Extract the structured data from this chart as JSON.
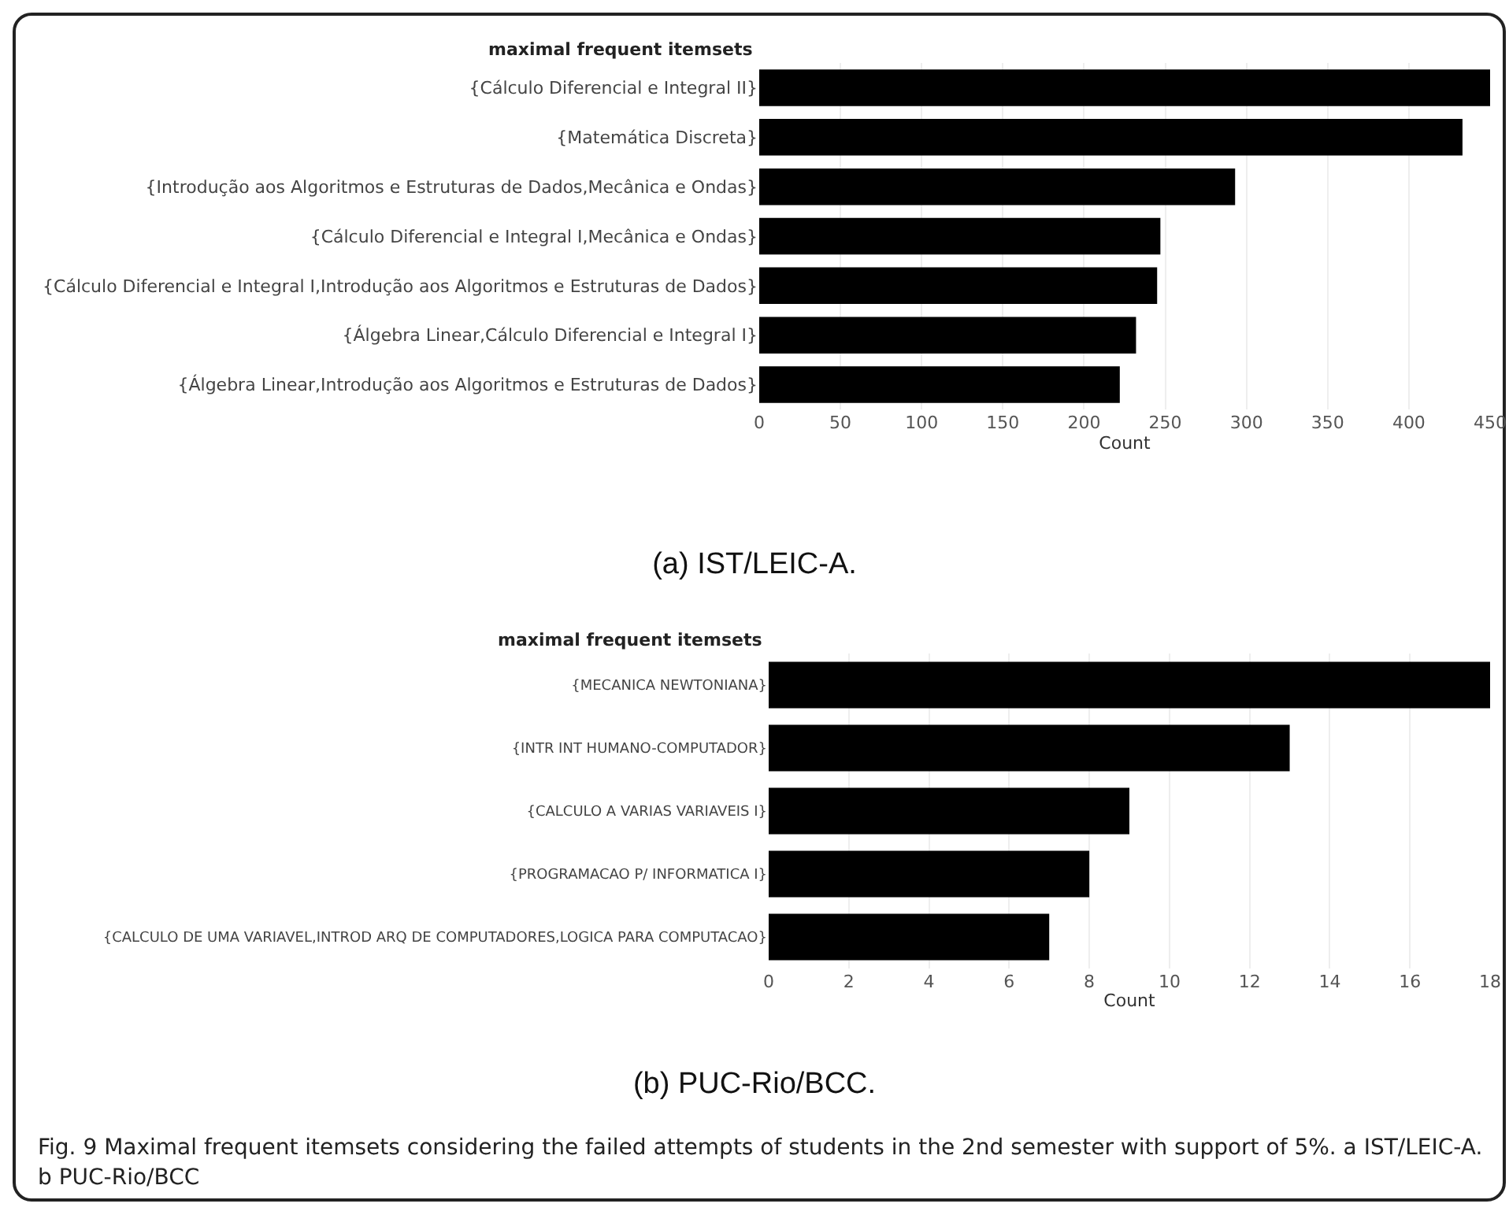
{
  "chart_data": [
    {
      "type": "bar",
      "orientation": "horizontal",
      "ylabel": "maximal frequent itemsets",
      "xlabel": "Count",
      "color": "#000000",
      "grid": "x",
      "categories": [
        "{Cálculo Diferencial e Integral II}",
        "{Matemática Discreta}",
        "{Introdução aos Algoritmos e Estruturas de Dados,Mecânica e Ondas}",
        "{Cálculo Diferencial e Integral I,Mecânica e Ondas}",
        "{Cálculo Diferencial e Integral I,Introdução aos Algoritmos e Estruturas de Dados}",
        "{Álgebra Linear,Cálculo Diferencial e Integral I}",
        "{Álgebra Linear,Introdução aos Algoritmos e Estruturas de Dados}"
      ],
      "values": [
        450,
        433,
        293,
        247,
        245,
        232,
        222
      ],
      "xlim": [
        0,
        450
      ],
      "xticks": [
        0,
        50,
        100,
        150,
        200,
        250,
        300,
        350,
        400,
        450
      ],
      "annotations": [
        "(a) IST/LEIC-A."
      ]
    },
    {
      "type": "bar",
      "orientation": "horizontal",
      "ylabel": "maximal frequent itemsets",
      "xlabel": "Count",
      "color": "#000000",
      "grid": "x",
      "categories": [
        "{MECANICA NEWTONIANA}",
        "{INTR INT HUMANO-COMPUTADOR}",
        "{CALCULO A VARIAS VARIAVEIS I}",
        "{PROGRAMACAO P/ INFORMATICA I}",
        "{CALCULO DE UMA VARIAVEL,INTROD ARQ DE COMPUTADORES,LOGICA PARA COMPUTACAO}"
      ],
      "values": [
        18,
        13,
        9,
        8,
        7
      ],
      "xlim": [
        0,
        18
      ],
      "xticks": [
        0,
        2,
        4,
        6,
        8,
        10,
        12,
        14,
        16,
        18
      ],
      "annotations": [
        "(b) PUC-Rio/BCC.",
        "Fig. 9 Maximal frequent itemsets considering the failed attempts of students in the 2nd semester with support of 5%. a IST/LEIC-A. b PUC-Rio/BCC"
      ]
    }
  ]
}
